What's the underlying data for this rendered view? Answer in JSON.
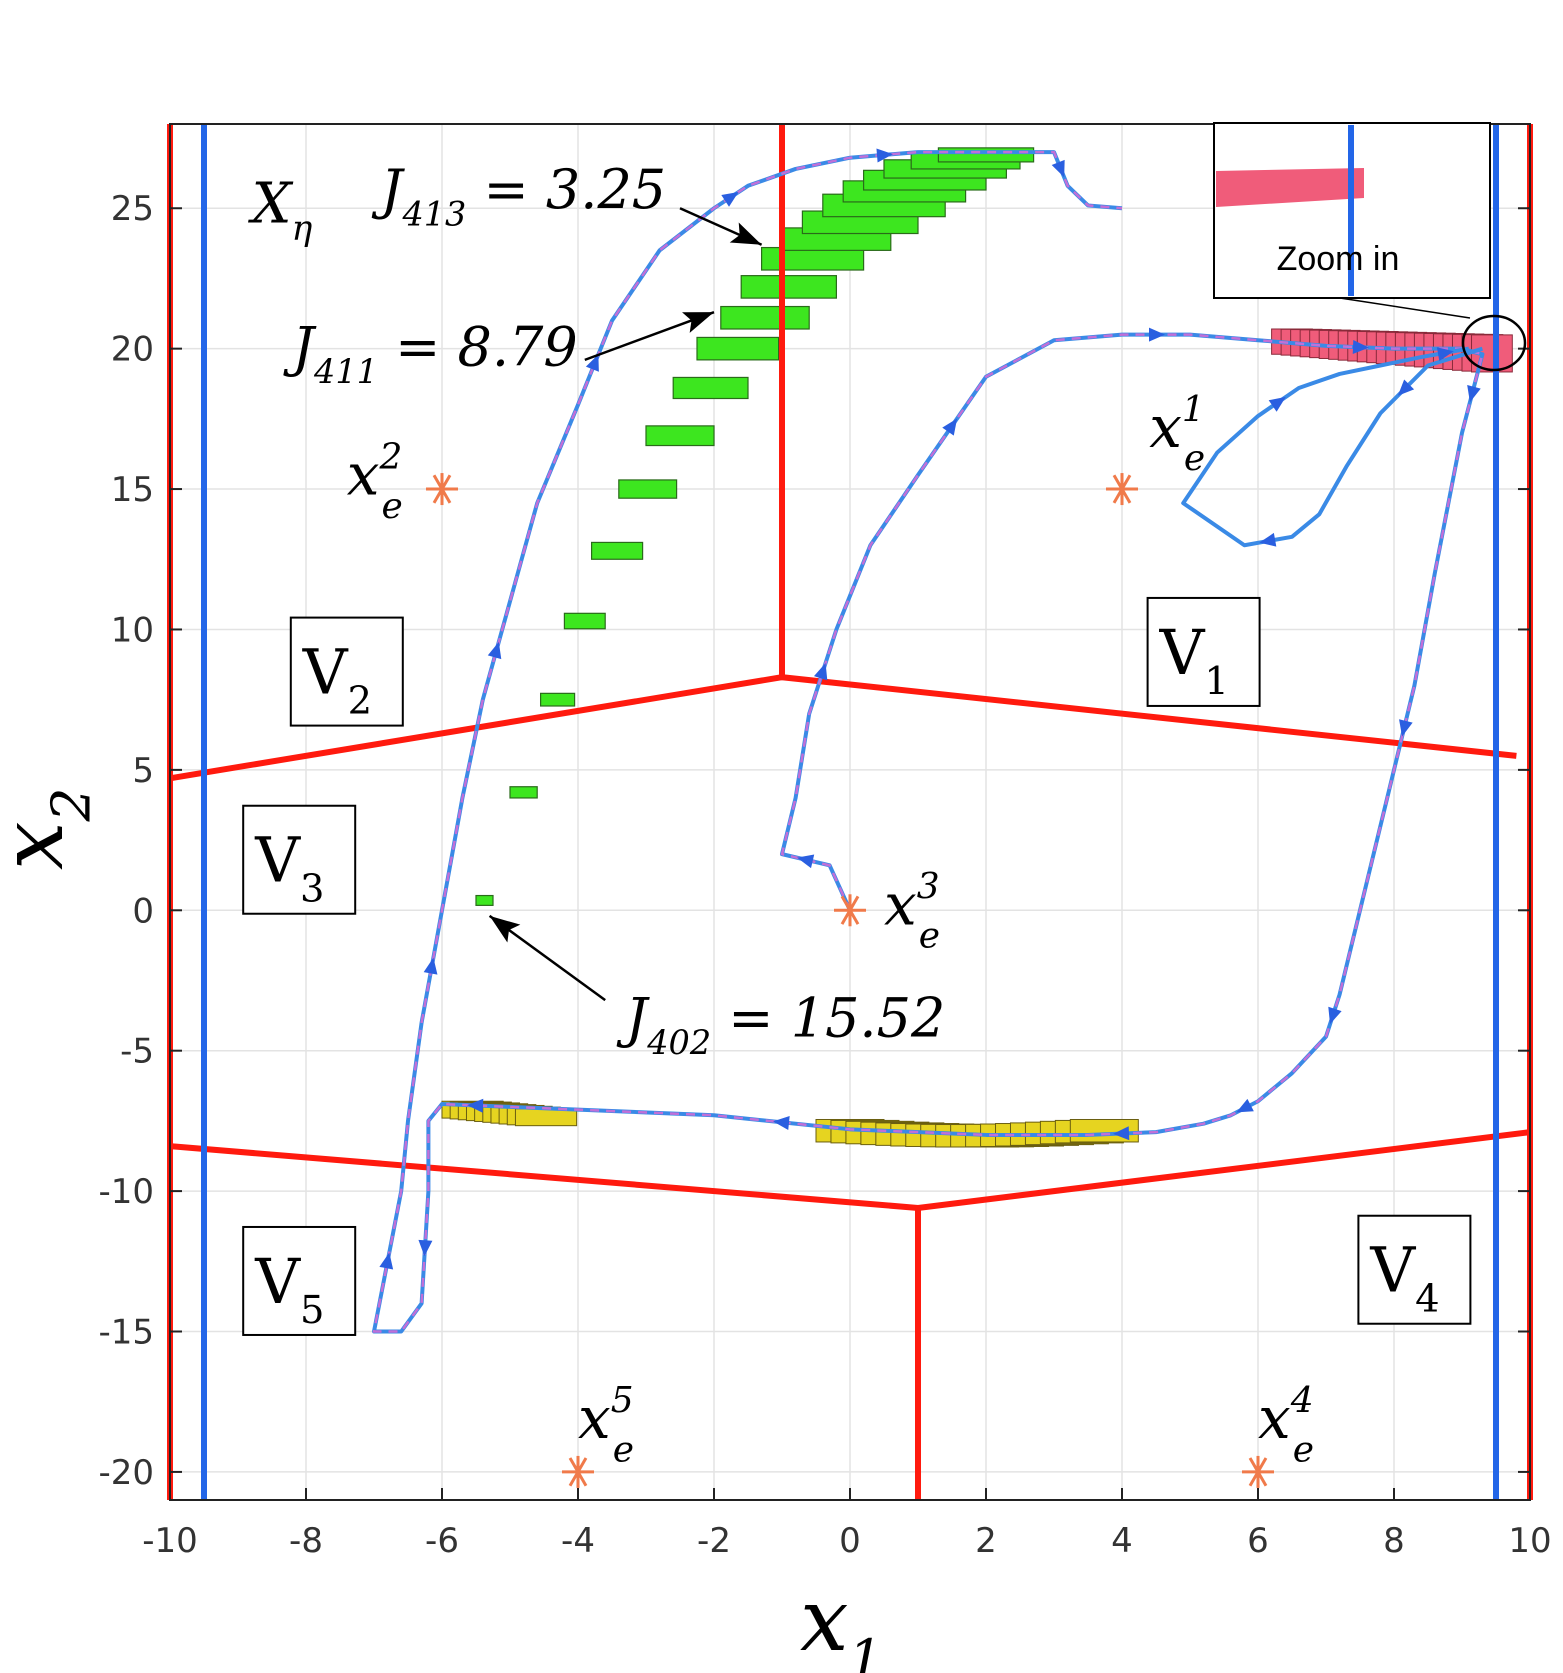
{
  "chart_data": {
    "type": "line",
    "xlabel": "x1",
    "ylabel": "x2",
    "xlim": [
      -10,
      10
    ],
    "ylim": [
      -21,
      28
    ],
    "xticks": [
      -10,
      -8,
      -6,
      -4,
      -2,
      0,
      2,
      4,
      6,
      8,
      10
    ],
    "yticks": [
      -20,
      -15,
      -10,
      -5,
      0,
      5,
      10,
      15,
      20,
      25
    ],
    "xtick_labels": [
      "-10",
      "-8",
      "-6",
      "-4",
      "-2",
      "0",
      "2",
      "4",
      "6",
      "8",
      "10"
    ],
    "ytick_labels": [
      "-20",
      "-15",
      "-10",
      "-5",
      "0",
      "5",
      "10",
      "15",
      "20",
      "25"
    ],
    "grid": true,
    "set_label": {
      "main": "X",
      "sub": "η"
    },
    "vertical_lines_blue": [
      -9.5,
      9.5
    ],
    "region_boundaries": [
      {
        "points": [
          [
            -10,
            4.7
          ],
          [
            -1,
            8.3
          ],
          [
            9.8,
            5.5
          ]
        ]
      },
      {
        "points": [
          [
            -1,
            8.3
          ],
          [
            -1,
            28
          ]
        ]
      },
      {
        "points": [
          [
            -10,
            -8.4
          ],
          [
            1,
            -10.6
          ],
          [
            10,
            -7.9
          ]
        ]
      },
      {
        "points": [
          [
            1,
            -10.6
          ],
          [
            1,
            -21
          ]
        ]
      },
      {
        "points": [
          [
            -10,
            -21
          ],
          [
            -10,
            28
          ]
        ]
      },
      {
        "points": [
          [
            10,
            -21
          ],
          [
            10,
            28
          ]
        ]
      }
    ],
    "regions": [
      {
        "main": "V",
        "sub": "1",
        "x": 5.2,
        "y": 9.2
      },
      {
        "main": "V",
        "sub": "2",
        "x": -7.4,
        "y": 8.5
      },
      {
        "main": "V",
        "sub": "3",
        "x": -8.1,
        "y": 1.8
      },
      {
        "main": "V",
        "sub": "4",
        "x": 8.3,
        "y": -12.8
      },
      {
        "main": "V",
        "sub": "5",
        "x": -8.1,
        "y": -13.2
      }
    ],
    "equilibria": [
      {
        "main": "x",
        "sub": "e",
        "sup": "1",
        "x": 4,
        "y": 15,
        "lx": 4.4,
        "ly": 16.5
      },
      {
        "main": "x",
        "sub": "e",
        "sup": "2",
        "x": -6,
        "y": 15,
        "lx": -7.4,
        "ly": 14.8
      },
      {
        "main": "x",
        "sub": "e",
        "sup": "3",
        "x": 0,
        "y": 0,
        "lx": 0.5,
        "ly": -0.5
      },
      {
        "main": "x",
        "sub": "e",
        "sup": "4",
        "x": 6,
        "y": -20,
        "lx": 6.0,
        "ly": -18.8
      },
      {
        "main": "x",
        "sub": "e",
        "sup": "5",
        "x": -4,
        "y": -20,
        "lx": -4.0,
        "ly": -18.8
      }
    ],
    "series": [
      {
        "style": "solid-blue-with-dashed-magenta-overlay",
        "x": [
          0.0,
          -0.3,
          -1.0,
          -0.8,
          -0.6,
          -0.2,
          0.3,
          1.0,
          2.0,
          3.0,
          4.0,
          5.0,
          6.0,
          7.0,
          8.0,
          9.0,
          9.3,
          9.0,
          8.6,
          8.3,
          8.0,
          7.6,
          7.2,
          7.0,
          6.5,
          6.0,
          5.6,
          5.2,
          4.5,
          3.5,
          2.0,
          0.0,
          -2.0,
          -4.0,
          -5.0,
          -6.0,
          -6.2,
          -6.2,
          -6.3,
          -6.6,
          -7.0,
          -6.6,
          -6.5,
          -6.3,
          -6.0,
          -5.7,
          -5.4,
          -5.0,
          -4.6,
          -4.0,
          -3.5,
          -2.8,
          -2.0,
          -1.5,
          -0.8,
          0.0,
          1.0,
          2.0,
          3.0,
          3.2,
          3.5,
          4.0
        ],
        "y": [
          0.0,
          1.6,
          2.0,
          4.0,
          7.0,
          10.0,
          13.0,
          15.5,
          19.0,
          20.3,
          20.5,
          20.5,
          20.3,
          20.1,
          20.0,
          20.0,
          19.8,
          17.0,
          12.0,
          8.0,
          5.0,
          1.0,
          -3.0,
          -4.5,
          -5.8,
          -6.8,
          -7.3,
          -7.6,
          -7.9,
          -8.0,
          -8.0,
          -7.8,
          -7.3,
          -7.1,
          -7.0,
          -6.9,
          -7.5,
          -10.0,
          -14.0,
          -15.0,
          -15.0,
          -10.0,
          -7.5,
          -4.0,
          0.0,
          4.0,
          7.5,
          11.0,
          14.5,
          18.0,
          21.0,
          23.5,
          25.0,
          25.8,
          26.4,
          26.8,
          27.0,
          27.0,
          27.0,
          25.8,
          25.1,
          25.0
        ]
      },
      {
        "style": "solid-blue-zoom-loop",
        "x": [
          9.3,
          8.5,
          7.8,
          7.3,
          6.9,
          6.5,
          5.8,
          4.9,
          5.4,
          6.0,
          6.6,
          7.2,
          7.8,
          8.4,
          9.1
        ],
        "y": [
          20.0,
          19.4,
          17.7,
          15.8,
          14.1,
          13.3,
          13.0,
          14.5,
          16.3,
          17.6,
          18.6,
          19.1,
          19.4,
          19.7,
          20.0
        ]
      }
    ],
    "annotations": [
      {
        "main": "J",
        "sub": "413",
        "text": " = 3.25",
        "x": -6.9,
        "y": 25.0
      },
      {
        "main": "J",
        "sub": "411",
        "text": " = 8.79",
        "x": -8.2,
        "y": 19.4
      },
      {
        "main": "J",
        "sub": "402",
        "text": " = 15.52",
        "x": -3.3,
        "y": -4.5
      }
    ],
    "inset": {
      "label": "Zoom in"
    }
  }
}
